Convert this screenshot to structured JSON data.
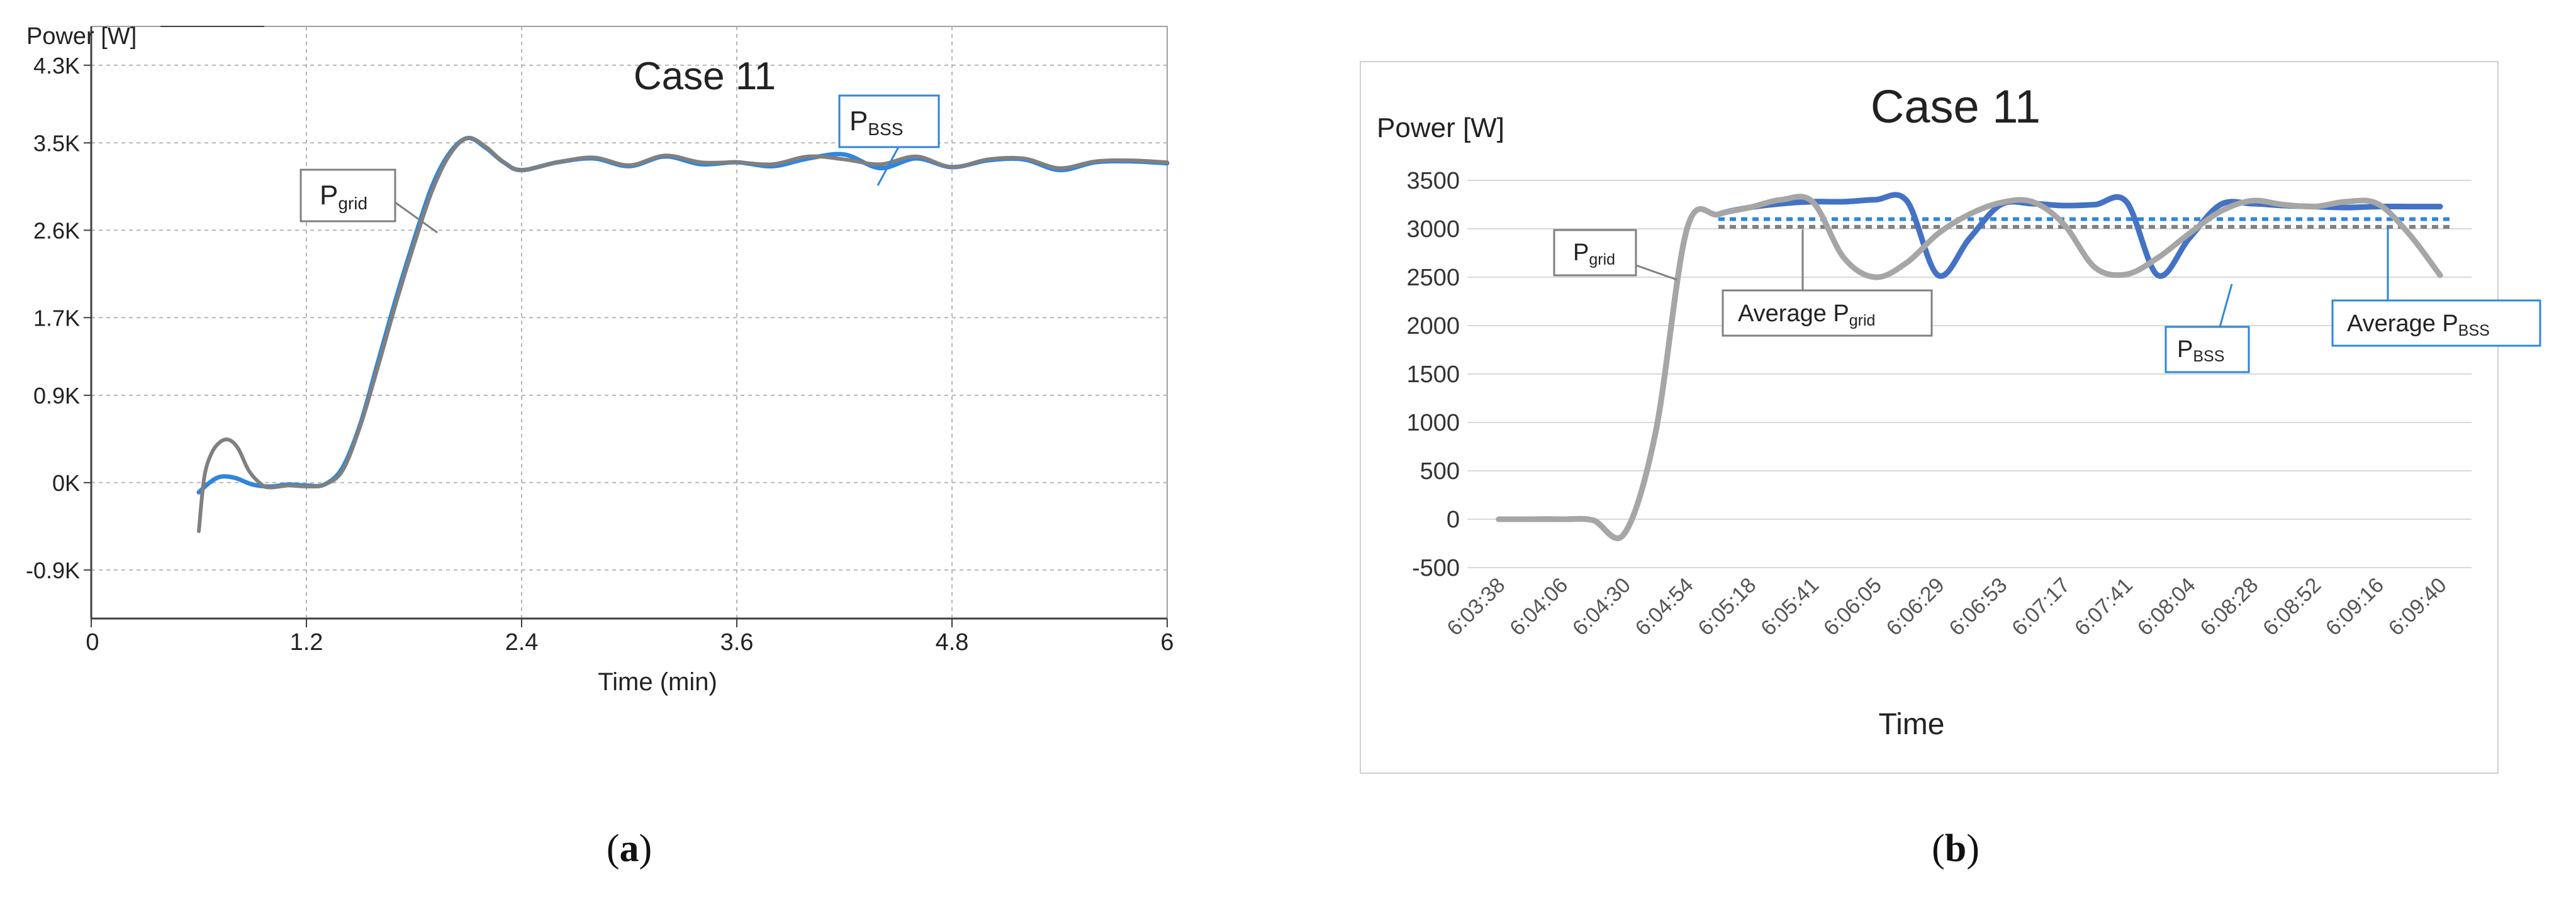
{
  "panel_a": {
    "letter": "a",
    "chart_data": {
      "type": "line",
      "title": "Case 11",
      "ylabel": "Power [W]",
      "xlabel": "Time (min)",
      "xlim": [
        0,
        6
      ],
      "ylim": [
        -1.4,
        4.7
      ],
      "grid": true,
      "x_ticks": [
        {
          "value": 0,
          "label": "0"
        },
        {
          "value": 1.2,
          "label": "1.2"
        },
        {
          "value": 2.4,
          "label": "2.4"
        },
        {
          "value": 3.6,
          "label": "3.6"
        },
        {
          "value": 4.8,
          "label": "4.8"
        },
        {
          "value": 6,
          "label": "6"
        }
      ],
      "y_ticks": [
        {
          "value": 4.3,
          "label": "4.3K"
        },
        {
          "value": 3.5,
          "label": "3.5K"
        },
        {
          "value": 2.6,
          "label": "2.6K"
        },
        {
          "value": 1.7,
          "label": "1.7K"
        },
        {
          "value": 0.9,
          "label": "0.9K"
        },
        {
          "value": 0,
          "label": "0K"
        },
        {
          "value": -0.9,
          "label": "-0.9K"
        }
      ],
      "series": [
        {
          "color": "#2e86de",
          "x": [
            0.6,
            0.66,
            0.72,
            0.8,
            0.9,
            1.0,
            1.1,
            1.2,
            1.3,
            1.4,
            1.5,
            1.6,
            1.7,
            1.8,
            1.9,
            2.0,
            2.1,
            2.2,
            2.3,
            2.4,
            2.6,
            2.8,
            3.0,
            3.2,
            3.4,
            3.6,
            3.8,
            4.0,
            4.2,
            4.4,
            4.6,
            4.8,
            5.0,
            5.2,
            5.4,
            5.6,
            5.8,
            6.0
          ],
          "y": [
            -0.1,
            0.0,
            0.06,
            0.05,
            -0.02,
            -0.04,
            -0.02,
            -0.03,
            -0.02,
            0.15,
            0.6,
            1.25,
            1.9,
            2.5,
            3.05,
            3.4,
            3.55,
            3.45,
            3.3,
            3.22,
            3.3,
            3.34,
            3.26,
            3.36,
            3.28,
            3.3,
            3.26,
            3.34,
            3.38,
            3.24,
            3.34,
            3.25,
            3.32,
            3.33,
            3.22,
            3.3,
            3.31,
            3.29
          ]
        },
        {
          "color": "#808080",
          "x": [
            0.6,
            0.63,
            0.67,
            0.72,
            0.77,
            0.82,
            0.88,
            0.95,
            1.0,
            1.1,
            1.2,
            1.3,
            1.4,
            1.5,
            1.6,
            1.7,
            1.8,
            1.9,
            2.0,
            2.1,
            2.2,
            2.3,
            2.4,
            2.6,
            2.8,
            3.0,
            3.2,
            3.4,
            3.6,
            3.8,
            4.0,
            4.2,
            4.4,
            4.6,
            4.8,
            5.0,
            5.2,
            5.4,
            5.6,
            5.8,
            6.0
          ],
          "y": [
            -0.5,
            0.05,
            0.3,
            0.42,
            0.44,
            0.35,
            0.12,
            -0.02,
            -0.05,
            -0.03,
            -0.04,
            -0.02,
            0.12,
            0.58,
            1.2,
            1.85,
            2.45,
            3.0,
            3.38,
            3.55,
            3.46,
            3.3,
            3.22,
            3.3,
            3.35,
            3.27,
            3.37,
            3.3,
            3.3,
            3.28,
            3.36,
            3.33,
            3.28,
            3.36,
            3.25,
            3.33,
            3.34,
            3.24,
            3.31,
            3.32,
            3.3
          ]
        }
      ],
      "annotations": [
        {
          "main": "P",
          "sub": "grid"
        },
        {
          "main": "P",
          "sub": "BSS"
        }
      ]
    }
  },
  "panel_b": {
    "letter": "b",
    "chart_data": {
      "type": "line",
      "title": "Case 11",
      "ylabel": "Power [W]",
      "xlabel": "Time",
      "ylim": [
        -500,
        3500
      ],
      "grid": true,
      "y_ticks": [
        3500,
        3000,
        2500,
        2000,
        1500,
        1000,
        500,
        0,
        -500
      ],
      "categories": [
        "6:03:38",
        "6:04:06",
        "6:04:30",
        "6:04:54",
        "6:05:18",
        "6:05:41",
        "6:06:05",
        "6:06:29",
        "6:06:53",
        "6:07:17",
        "6:07:41",
        "6:08:04",
        "6:08:28",
        "6:08:52",
        "6:09:16",
        "6:09:40"
      ],
      "series": [
        {
          "color": "#4472c4",
          "x": [
            0,
            0.5,
            1,
            1.5,
            2,
            2.5,
            3,
            3.5,
            4,
            4.5,
            5,
            5.5,
            6,
            6.5,
            7,
            7.5,
            8,
            8.5,
            9,
            9.5,
            10,
            10.5,
            11,
            11.5,
            12,
            12.5,
            13,
            13.5,
            14,
            14.5,
            15
          ],
          "y": [
            0,
            0,
            0,
            -10,
            -150,
            900,
            3000,
            3150,
            3220,
            3260,
            3280,
            3280,
            3300,
            3290,
            2520,
            2900,
            3250,
            3260,
            3240,
            3250,
            3280,
            2520,
            2900,
            3250,
            3260,
            3240,
            3230,
            3220,
            3230,
            3230,
            3230
          ]
        },
        {
          "color": "#a6a6a6",
          "x": [
            0,
            0.5,
            1,
            1.5,
            2,
            2.5,
            3,
            3.5,
            4,
            4.5,
            5,
            5.5,
            6,
            6.5,
            7,
            7.5,
            8,
            8.5,
            9,
            9.5,
            10,
            10.5,
            11,
            11.5,
            12,
            12.5,
            13,
            13.5,
            14,
            14.5,
            15
          ],
          "y": [
            0,
            0,
            0,
            -10,
            -150,
            900,
            3000,
            3150,
            3220,
            3300,
            3280,
            2700,
            2500,
            2650,
            2950,
            3150,
            3270,
            3280,
            3050,
            2600,
            2530,
            2700,
            2950,
            3180,
            3290,
            3250,
            3230,
            3280,
            3260,
            2950,
            2520
          ]
        }
      ],
      "reference_lines": [
        {
          "color": "#2e86de",
          "value": 3100,
          "x_start": 3.5,
          "x_end": 15.2
        },
        {
          "color": "#808080",
          "value": 3020,
          "x_start": 3.5,
          "x_end": 15.2
        }
      ],
      "annotations": [
        {
          "main": "P",
          "sub": "grid"
        },
        {
          "main": "Average P",
          "sub": "grid"
        },
        {
          "main": "P",
          "sub": "BSS"
        },
        {
          "main": "Average P",
          "sub": "BSS"
        }
      ]
    }
  }
}
